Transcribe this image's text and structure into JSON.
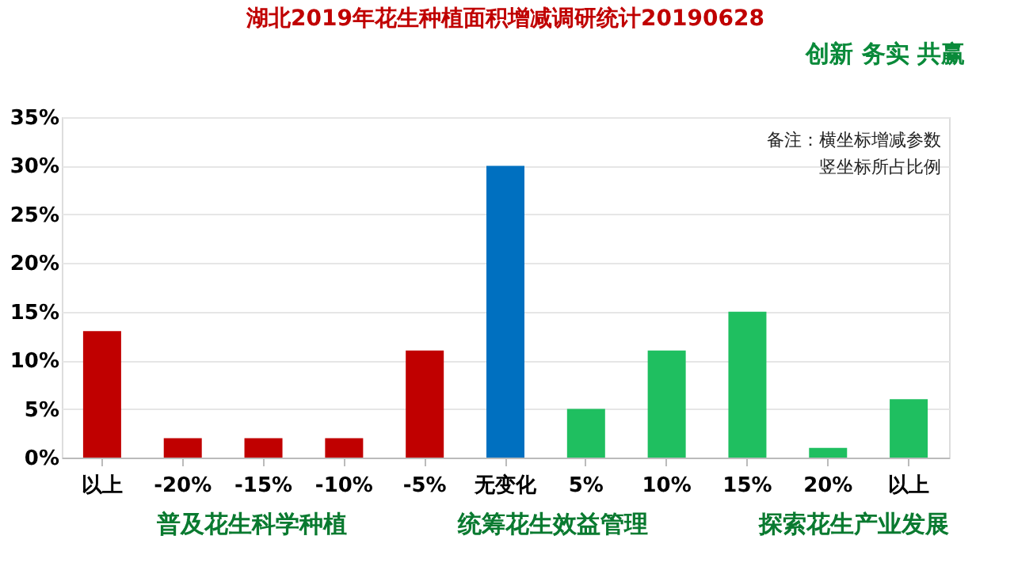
{
  "chart_data": {
    "type": "bar",
    "title": "湖北2019年花生种植面积增减调研统计20190628",
    "categories": [
      "以上",
      "-20%",
      "-15%",
      "-10%",
      "-5%",
      "无变化",
      "5%",
      "10%",
      "15%",
      "20%",
      "以上"
    ],
    "values": [
      13,
      2,
      2,
      2,
      11,
      30,
      5,
      11,
      15,
      1,
      6
    ],
    "colors": [
      "#c00000",
      "#c00000",
      "#c00000",
      "#c00000",
      "#c00000",
      "#0070c0",
      "#1fbf60",
      "#1fbf60",
      "#1fbf60",
      "#1fbf60",
      "#1fbf60"
    ],
    "ylim": [
      0,
      35
    ],
    "yticks": [
      {
        "value": 0,
        "label": "0%"
      },
      {
        "value": 5,
        "label": "5%"
      },
      {
        "value": 10,
        "label": "10%"
      },
      {
        "value": 15,
        "label": "15%"
      },
      {
        "value": 20,
        "label": "20%"
      },
      {
        "value": 25,
        "label": "25%"
      },
      {
        "value": 30,
        "label": "30%"
      },
      {
        "value": 35,
        "label": "35%"
      }
    ],
    "grid": "y",
    "annotations": [
      "备注：横坐标增减参数",
      "竖坐标所占比例",
      "创新  务实  共赢",
      "普及花生科学种植",
      "统筹花生效益管理",
      "探索花生产业发展"
    ]
  }
}
